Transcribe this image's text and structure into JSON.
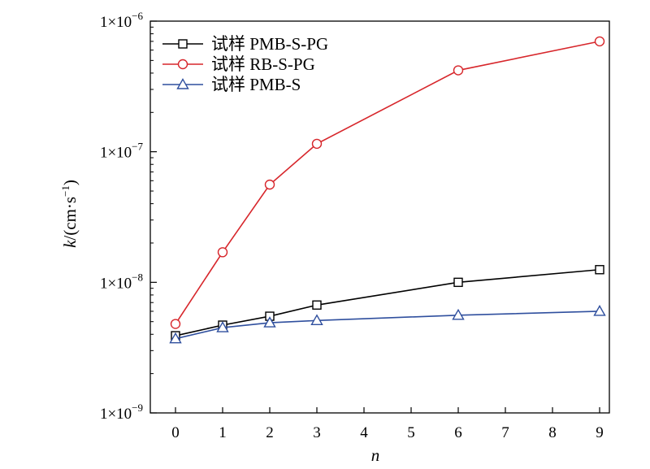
{
  "chart_data": {
    "type": "line",
    "xlabel": "n",
    "ylabel": {
      "main": "k",
      "rest": "/(cm·s",
      "sup": "−1",
      "close": ")"
    },
    "xlim": [
      -0.5,
      9
    ],
    "ylim": [
      1e-09,
      1e-06
    ],
    "yscale": "log",
    "xticks": [
      0,
      1,
      2,
      3,
      4,
      5,
      6,
      7,
      8,
      9
    ],
    "yticks": [
      {
        "value": 1e-09,
        "mantissa": "1×10",
        "exp": "−9"
      },
      {
        "value": 1e-08,
        "mantissa": "1×10",
        "exp": "−8"
      },
      {
        "value": 1e-07,
        "mantissa": "1×10",
        "exp": "−7"
      },
      {
        "value": 1e-06,
        "mantissa": "1×10",
        "exp": "−6"
      }
    ],
    "legend_position": "top-left",
    "grid": false,
    "series": [
      {
        "name": "试样 PMB-S-PG",
        "color": "#000000",
        "marker": "square",
        "x": [
          0,
          1,
          2,
          3,
          6,
          9
        ],
        "y": [
          3.9e-09,
          4.7e-09,
          5.5e-09,
          6.7e-09,
          1e-08,
          1.25e-08
        ]
      },
      {
        "name": "试样 RB-S-PG",
        "color": "#d7262b",
        "marker": "circle",
        "x": [
          0,
          1,
          2,
          3,
          6,
          9
        ],
        "y": [
          4.8e-09,
          1.7e-08,
          5.6e-08,
          1.15e-07,
          4.2e-07,
          7e-07
        ]
      },
      {
        "name": "试样 PMB-S",
        "color": "#2f4f9e",
        "marker": "triangle",
        "x": [
          0,
          1,
          2,
          3,
          6,
          9
        ],
        "y": [
          3.7e-09,
          4.5e-09,
          4.9e-09,
          5.1e-09,
          5.6e-09,
          6e-09
        ]
      }
    ]
  }
}
